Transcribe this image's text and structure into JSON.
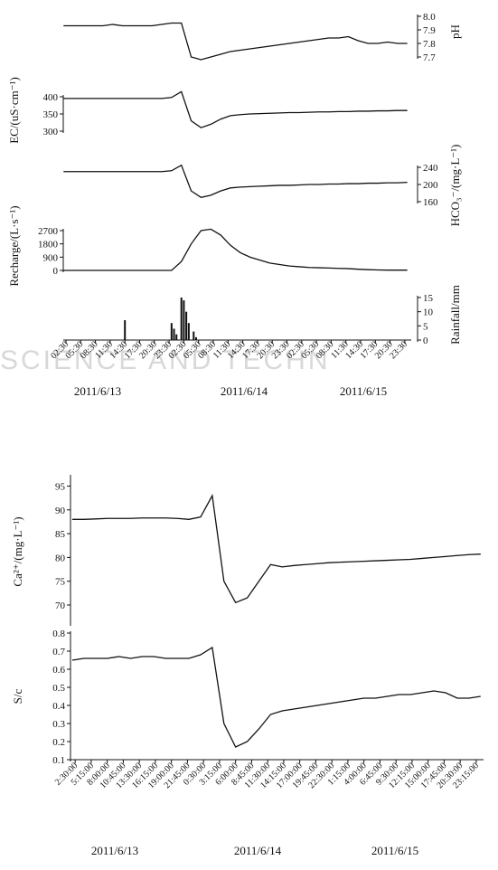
{
  "watermark": "SCIENCE AND TECHN",
  "chart_data": [
    {
      "type": "line",
      "x": [
        2,
        4,
        6,
        8,
        10,
        12,
        14,
        16,
        18,
        20,
        22,
        24,
        26,
        28,
        30,
        32,
        34,
        36,
        38,
        40,
        42,
        44,
        46,
        48,
        50,
        52,
        54,
        56,
        58,
        60,
        62,
        64,
        66,
        68,
        70,
        72
      ],
      "xlim": [
        1.95,
        72.8
      ],
      "xticks": [
        {
          "value": 2.5,
          "label": "02:30"
        },
        {
          "value": 5.5,
          "label": "05:30"
        },
        {
          "value": 8.5,
          "label": "08:30"
        },
        {
          "value": 11.5,
          "label": "11:30"
        },
        {
          "value": 14.5,
          "label": "14:30"
        },
        {
          "value": 17.5,
          "label": "17:30"
        },
        {
          "value": 20.5,
          "label": "20:30"
        },
        {
          "value": 23.5,
          "label": "23:30"
        },
        {
          "value": 26.5,
          "label": "02:30"
        },
        {
          "value": 29.5,
          "label": "05:30"
        },
        {
          "value": 32.5,
          "label": "08:30"
        },
        {
          "value": 35.5,
          "label": "11:30"
        },
        {
          "value": 38.5,
          "label": "14:30"
        },
        {
          "value": 41.5,
          "label": "17:30"
        },
        {
          "value": 44.5,
          "label": "20:30"
        },
        {
          "value": 47.5,
          "label": "23:30"
        },
        {
          "value": 50.5,
          "label": "02:30"
        },
        {
          "value": 53.5,
          "label": "05:30"
        },
        {
          "value": 56.5,
          "label": "08:30"
        },
        {
          "value": 59.5,
          "label": "11:30"
        },
        {
          "value": 62.5,
          "label": "14:30"
        },
        {
          "value": 65.5,
          "label": "17:30"
        },
        {
          "value": 68.5,
          "label": "20:30"
        },
        {
          "value": 71.5,
          "label": "23:30"
        }
      ],
      "date_labels": [
        "2011/6/13",
        "2011/6/14",
        "2011/6/15"
      ],
      "color": "#111111",
      "panels": [
        {
          "type": "line",
          "ylabel": "pH",
          "axis": "right",
          "ylim": [
            7.7,
            8.0
          ],
          "yticks": [
            7.7,
            7.8,
            7.9,
            {
              "value": 8.0,
              "label": "8.0"
            }
          ],
          "values": [
            7.93,
            7.93,
            7.93,
            7.93,
            7.93,
            7.94,
            7.93,
            7.93,
            7.93,
            7.93,
            7.94,
            7.95,
            7.95,
            7.7,
            7.68,
            7.7,
            7.72,
            7.74,
            7.75,
            7.76,
            7.77,
            7.78,
            7.79,
            7.8,
            7.81,
            7.82,
            7.83,
            7.84,
            7.84,
            7.85,
            7.82,
            7.8,
            7.8,
            7.81,
            7.8,
            7.8
          ]
        },
        {
          "type": "line",
          "ylabel": "EC/(uS·cm⁻¹)",
          "axis": "left",
          "ylim": [
            300,
            400
          ],
          "yticks": [
            300,
            350,
            400
          ],
          "values": [
            395,
            395,
            395,
            395,
            395,
            395,
            395,
            395,
            395,
            395,
            395,
            398,
            415,
            330,
            310,
            320,
            335,
            345,
            348,
            350,
            351,
            352,
            353,
            354,
            354,
            355,
            356,
            356,
            357,
            357,
            358,
            358,
            359,
            359,
            360,
            360
          ]
        },
        {
          "type": "line",
          "ylabel": "HCO₃⁻/(mg·L⁻¹)",
          "axis": "right",
          "ylim": [
            160,
            240
          ],
          "yticks": [
            160,
            200,
            240
          ],
          "values": [
            230,
            230,
            230,
            230,
            230,
            230,
            230,
            230,
            230,
            230,
            230,
            232,
            245,
            185,
            170,
            175,
            185,
            192,
            194,
            195,
            196,
            197,
            198,
            198,
            199,
            200,
            200,
            201,
            201,
            202,
            202,
            203,
            203,
            204,
            204,
            205
          ]
        },
        {
          "type": "line",
          "ylabel": "Recharge/(L·s⁻¹)",
          "axis": "left",
          "ylim": [
            0,
            2700
          ],
          "yticks": [
            0,
            900,
            1800,
            2700
          ],
          "values": [
            0,
            0,
            0,
            0,
            0,
            0,
            0,
            0,
            0,
            0,
            0,
            0,
            600,
            1800,
            2700,
            2800,
            2400,
            1700,
            1200,
            900,
            700,
            500,
            400,
            300,
            250,
            200,
            180,
            160,
            140,
            120,
            80,
            50,
            30,
            20,
            20,
            20
          ]
        },
        {
          "type": "bar",
          "ylabel": "Rainfall/mm",
          "axis": "right",
          "ylim": [
            0,
            15
          ],
          "yticks": [
            0,
            5,
            10,
            15
          ],
          "x": [
            14.5,
            24,
            24.5,
            25,
            26,
            26.5,
            27,
            27.5,
            28.5,
            29
          ],
          "values": [
            7,
            6,
            4,
            2,
            15,
            14,
            10,
            6,
            3,
            1
          ]
        }
      ]
    },
    {
      "type": "line",
      "x": [
        2,
        4,
        6,
        8,
        10,
        12,
        14,
        16,
        18,
        20,
        22,
        24,
        26,
        28,
        30,
        32,
        34,
        36,
        38,
        40,
        42,
        44,
        46,
        48,
        50,
        52,
        54,
        56,
        58,
        60,
        62,
        64,
        66,
        68,
        70,
        72
      ],
      "xlim": [
        1.7,
        72.5
      ],
      "xticks": [
        {
          "value": 2.5,
          "label": "2:30:00"
        },
        {
          "value": 5.25,
          "label": "5:15:00"
        },
        {
          "value": 8,
          "label": "8:00:00"
        },
        {
          "value": 10.75,
          "label": "10:45:00"
        },
        {
          "value": 13.5,
          "label": "13:30:00"
        },
        {
          "value": 16.25,
          "label": "16:15:00"
        },
        {
          "value": 19,
          "label": "19:00:00"
        },
        {
          "value": 21.75,
          "label": "21:45:00"
        },
        {
          "value": 24.5,
          "label": "0:30:00"
        },
        {
          "value": 27.25,
          "label": "3:15:00"
        },
        {
          "value": 30,
          "label": "6:00:00"
        },
        {
          "value": 32.75,
          "label": "8:45:00"
        },
        {
          "value": 35.5,
          "label": "11:30:00"
        },
        {
          "value": 38.25,
          "label": "14:15:00"
        },
        {
          "value": 41,
          "label": "17:00:00"
        },
        {
          "value": 43.75,
          "label": "19:45:00"
        },
        {
          "value": 46.5,
          "label": "22:30:00"
        },
        {
          "value": 49.25,
          "label": "1:15:00"
        },
        {
          "value": 52,
          "label": "4:00:00"
        },
        {
          "value": 54.75,
          "label": "6:45:00"
        },
        {
          "value": 57.5,
          "label": "9:30:00"
        },
        {
          "value": 60.25,
          "label": "12:15:00"
        },
        {
          "value": 63,
          "label": "15:00:00"
        },
        {
          "value": 65.75,
          "label": "17:45:00"
        },
        {
          "value": 68.5,
          "label": "20:30:00"
        },
        {
          "value": 71.25,
          "label": "23:15:00"
        }
      ],
      "date_labels": [
        "2011/6/13",
        "2011/6/14",
        "2011/6/15"
      ],
      "color": "#111111",
      "panels": [
        {
          "type": "line",
          "ylabel": "Ca²⁺/(mg·L⁻¹)",
          "axis": "left",
          "ylim": [
            66,
            97
          ],
          "yticks": [
            70,
            75,
            80,
            85,
            90,
            95
          ],
          "values": [
            88,
            88,
            88.1,
            88.2,
            88.2,
            88.2,
            88.3,
            88.3,
            88.3,
            88.2,
            88.0,
            88.5,
            93,
            75,
            70.5,
            71.5,
            75,
            78.5,
            78,
            78.3,
            78.5,
            78.7,
            78.9,
            79,
            79.1,
            79.2,
            79.3,
            79.4,
            79.5,
            79.6,
            79.8,
            80,
            80.2,
            80.4,
            80.6,
            80.7
          ]
        },
        {
          "type": "line",
          "ylabel": "S/c",
          "axis": "left",
          "ylim": [
            0.1,
            0.8
          ],
          "yticks": [
            0.1,
            0.2,
            0.3,
            0.4,
            0.5,
            0.6,
            0.7,
            0.8
          ],
          "values": [
            0.65,
            0.66,
            0.66,
            0.66,
            0.67,
            0.66,
            0.67,
            0.67,
            0.66,
            0.66,
            0.66,
            0.68,
            0.72,
            0.3,
            0.17,
            0.2,
            0.27,
            0.35,
            0.37,
            0.38,
            0.39,
            0.4,
            0.41,
            0.42,
            0.43,
            0.44,
            0.44,
            0.45,
            0.46,
            0.46,
            0.47,
            0.48,
            0.47,
            0.44,
            0.44,
            0.45
          ]
        }
      ]
    }
  ]
}
